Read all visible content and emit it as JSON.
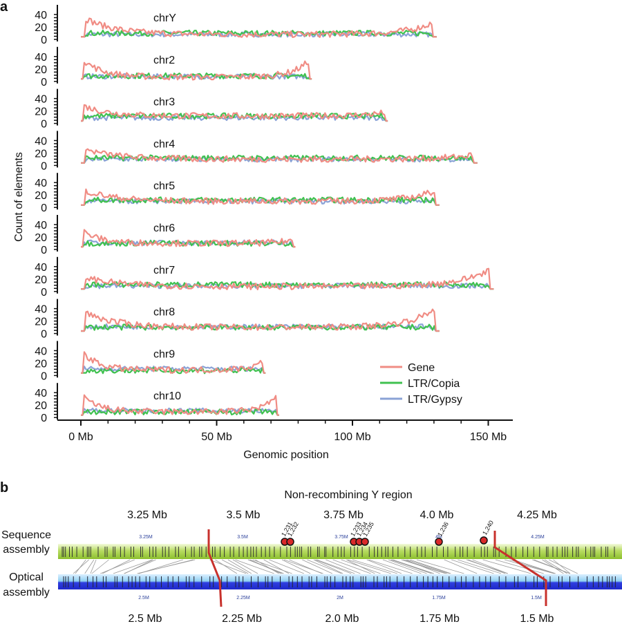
{
  "panel_a": {
    "letter": "a",
    "y_axis_title": "Count of elements",
    "x_axis_title": "Genomic position",
    "x_ticks": [
      "0 Mb",
      "50 Mb",
      "100 Mb",
      "150 Mb"
    ],
    "y_ticks": [
      "0",
      "20",
      "40"
    ],
    "legend": [
      {
        "label": "Gene",
        "color": "#f08c84"
      },
      {
        "label": "LTR/Copia",
        "color": "#3fc14f"
      },
      {
        "label": "LTR/Gypsy",
        "color": "#8aa2d6"
      }
    ]
  },
  "chart_data": {
    "type": "line",
    "xlabel": "Genomic position",
    "ylabel": "Count of elements",
    "x_unit": "Mb",
    "xlim": [
      0,
      150
    ],
    "ylim": [
      0,
      40
    ],
    "series_names": [
      "Gene",
      "LTR/Copia",
      "LTR/Gypsy"
    ],
    "chromosomes": [
      {
        "name": "chrY",
        "length_mb": 131,
        "profile": {
          "gene_start": 38,
          "gene_end": 30,
          "gene_mid": 8,
          "copia": 10,
          "gypsy": 8
        }
      },
      {
        "name": "chr2",
        "length_mb": 85,
        "profile": {
          "gene_start": 38,
          "gene_end": 38,
          "gene_mid": 7,
          "copia": 9,
          "gypsy": 8
        }
      },
      {
        "name": "chr3",
        "length_mb": 113,
        "profile": {
          "gene_start": 30,
          "gene_end": 18,
          "gene_mid": 12,
          "copia": 12,
          "gypsy": 9
        }
      },
      {
        "name": "chr4",
        "length_mb": 146,
        "profile": {
          "gene_start": 28,
          "gene_end": 18,
          "gene_mid": 10,
          "copia": 12,
          "gypsy": 10
        }
      },
      {
        "name": "chr5",
        "length_mb": 132,
        "profile": {
          "gene_start": 30,
          "gene_end": 30,
          "gene_mid": 10,
          "copia": 12,
          "gypsy": 10
        }
      },
      {
        "name": "chr6",
        "length_mb": 79,
        "profile": {
          "gene_start": 32,
          "gene_end": 16,
          "gene_mid": 10,
          "copia": 10,
          "gypsy": 11
        }
      },
      {
        "name": "chr7",
        "length_mb": 152,
        "profile": {
          "gene_start": 25,
          "gene_end": 40,
          "gene_mid": 8,
          "copia": 11,
          "gypsy": 9
        }
      },
      {
        "name": "chr8",
        "length_mb": 132,
        "profile": {
          "gene_start": 38,
          "gene_end": 45,
          "gene_mid": 10,
          "copia": 10,
          "gypsy": 11
        }
      },
      {
        "name": "chr9",
        "length_mb": 68,
        "profile": {
          "gene_start": 42,
          "gene_end": 25,
          "gene_mid": 9,
          "copia": 8,
          "gypsy": 11
        }
      },
      {
        "name": "chr10",
        "length_mb": 73,
        "profile": {
          "gene_start": 38,
          "gene_end": 40,
          "gene_mid": 9,
          "copia": 9,
          "gypsy": 11
        }
      }
    ]
  },
  "panel_b": {
    "letter": "b",
    "title": "Non-recombining Y region",
    "top_scale": [
      "3.25 Mb",
      "3.5 Mb",
      "3.75 Mb",
      "4.0 Mb",
      "4.25 Mb"
    ],
    "bottom_scale": [
      "2.5 Mb",
      "2.25 Mb",
      "2.0 Mb",
      "1.75 Mb",
      "1.5 Mb"
    ],
    "seq_mini_ticks": [
      "3.25M",
      "3.5M",
      "3.75M",
      "4M",
      "4.25M"
    ],
    "opt_mini_ticks": [
      "2.5M",
      "2.25M",
      "2M",
      "1.75M",
      "1.5M"
    ],
    "track_labels": {
      "sequence": [
        "Sequence",
        "assembly"
      ],
      "optical": [
        "Optical",
        "assembly"
      ]
    },
    "markers": [
      "1,231",
      "1,232",
      "1,233",
      "1,234",
      "1,235",
      "1,236",
      "1,240"
    ],
    "colors": {
      "sequence_track": "#9ccc3c",
      "optical_track": "#2a34d9",
      "breakpoint": "#c8312c",
      "marker_fill": "#d9292a"
    }
  }
}
